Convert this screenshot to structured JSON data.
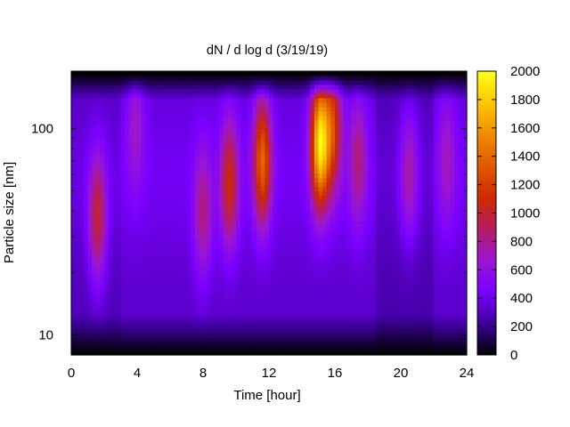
{
  "chart_data": {
    "type": "heatmap",
    "title": "dN / d log d (3/19/19)",
    "xlabel": "Time [hour]",
    "ylabel": "Particle size [nm]",
    "xlim": [
      0,
      24
    ],
    "x_ticks": [
      0,
      4,
      8,
      12,
      16,
      20,
      24
    ],
    "y_scale": "log",
    "ylim": [
      8,
      190
    ],
    "y_ticks": [
      10,
      100
    ],
    "colorbar": {
      "min": 0,
      "max": 2000,
      "ticks": [
        0,
        200,
        400,
        600,
        800,
        1000,
        1200,
        1400,
        1600,
        1800,
        2000
      ],
      "palette": [
        "#000000",
        "#3d0099",
        "#7a00ff",
        "#9b16d4",
        "#b51c63",
        "#cc2a00",
        "#e05a00",
        "#f08c00",
        "#fcc700",
        "#ffff1c"
      ]
    },
    "features": [
      {
        "time_hour": 1.6,
        "size_nm": 38,
        "peak": 1000
      },
      {
        "time_hour": 3.9,
        "size_nm": 100,
        "peak": 700
      },
      {
        "time_hour": 8.0,
        "size_nm": 40,
        "peak": 850
      },
      {
        "time_hour": 9.6,
        "size_nm": 55,
        "peak": 1100
      },
      {
        "time_hour": 11.6,
        "size_nm": 70,
        "peak": 1380
      },
      {
        "time_hour": 15.1,
        "size_nm": 85,
        "peak": 1900
      },
      {
        "time_hour": 15.9,
        "size_nm": 100,
        "peak": 1150
      },
      {
        "time_hour": 17.4,
        "size_nm": 70,
        "peak": 850
      },
      {
        "time_hour": 20.5,
        "size_nm": 60,
        "peak": 760
      },
      {
        "time_hour": 22.8,
        "size_nm": 70,
        "peak": 720
      }
    ],
    "grid": false,
    "legend": "none"
  }
}
